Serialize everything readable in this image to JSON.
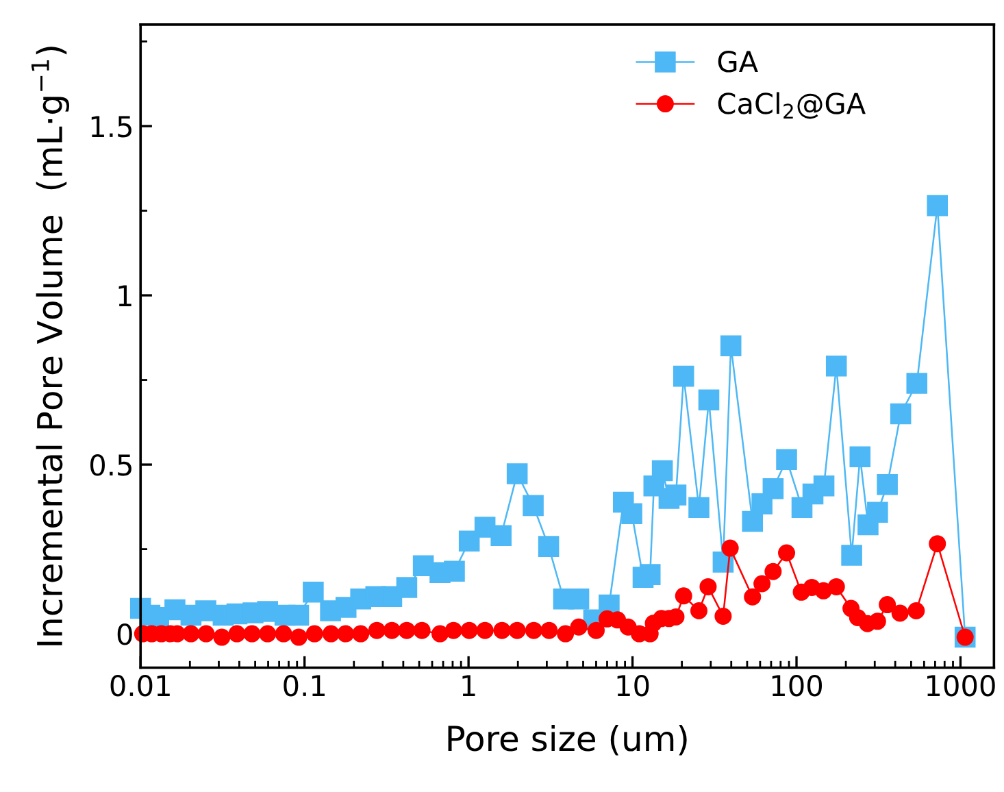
{
  "chart_data": {
    "type": "line",
    "xlabel": "Pore size (um)",
    "ylabel": "Incremental Pore Volume  (mL·g$^{−1}$)",
    "log": "x",
    "xlim": [
      0.01,
      1600
    ],
    "xticks": [
      0.01,
      0.1,
      1,
      10,
      100,
      1000
    ],
    "ylim": [
      -0.1,
      1.8
    ],
    "yticks": [
      0,
      0.5,
      1,
      1.5
    ],
    "grid": false,
    "legend": "top right",
    "line_style": "solid",
    "series": [
      {
        "name": "GA",
        "color": "#4db8f5",
        "marker": "square",
        "x": [
          0.01,
          0.0114,
          0.0129,
          0.0162,
          0.0203,
          0.025,
          0.0319,
          0.0387,
          0.0485,
          0.0595,
          0.076,
          0.092,
          0.113,
          0.144,
          0.179,
          0.22,
          0.272,
          0.34,
          0.42,
          0.53,
          0.67,
          0.82,
          1.01,
          1.26,
          1.58,
          1.98,
          2.48,
          3.08,
          3.8,
          4.7,
          5.8,
          7.2,
          8.8,
          9.9,
          11.6,
          12.8,
          13.5,
          15.2,
          16.7,
          18.4,
          20.5,
          25.4,
          29.2,
          35.7,
          39.8,
          53.9,
          61.6,
          72,
          87,
          108,
          126,
          147,
          175,
          217,
          244,
          273,
          312,
          358,
          432,
          542,
          723,
          1067
        ],
        "values": [
          0.075,
          0.055,
          0.048,
          0.071,
          0.055,
          0.068,
          0.055,
          0.059,
          0.062,
          0.066,
          0.055,
          0.055,
          0.123,
          0.068,
          0.078,
          0.103,
          0.11,
          0.11,
          0.137,
          0.201,
          0.181,
          0.185,
          0.274,
          0.315,
          0.29,
          0.473,
          0.379,
          0.258,
          0.103,
          0.103,
          0.041,
          0.085,
          0.389,
          0.355,
          0.167,
          0.175,
          0.437,
          0.482,
          0.4,
          0.41,
          0.761,
          0.373,
          0.691,
          0.212,
          0.851,
          0.332,
          0.384,
          0.429,
          0.515,
          0.373,
          0.413,
          0.437,
          0.791,
          0.232,
          0.523,
          0.322,
          0.359,
          0.441,
          0.65,
          0.74,
          1.265,
          -0.01
        ]
      },
      {
        "name": "CaCl$_{2}$@GA",
        "color": "#ff0000",
        "marker": "circle",
        "x": [
          0.0103,
          0.0117,
          0.0134,
          0.0152,
          0.0167,
          0.0203,
          0.0251,
          0.0313,
          0.0387,
          0.0478,
          0.0595,
          0.0745,
          0.0922,
          0.115,
          0.145,
          0.178,
          0.22,
          0.276,
          0.341,
          0.42,
          0.52,
          0.67,
          0.81,
          1.01,
          1.26,
          1.6,
          1.98,
          2.5,
          3.1,
          3.9,
          4.7,
          6.0,
          7.0,
          8.1,
          9.4,
          11.0,
          12.8,
          13.4,
          15.0,
          16.7,
          18.4,
          20.5,
          25.4,
          28.9,
          35.7,
          39.4,
          53.9,
          61.6,
          72,
          87,
          107,
          124,
          146,
          175,
          215,
          236,
          271,
          312,
          358,
          428,
          537,
          723,
          1067
        ],
        "values": [
          0.0,
          0.0,
          0.0,
          0.0,
          0.0,
          0.0,
          0.0,
          -0.01,
          0.0,
          0.0,
          0.0,
          0.0,
          -0.01,
          0.0,
          0.0,
          0.0,
          0.0,
          0.01,
          0.01,
          0.01,
          0.01,
          0.0,
          0.01,
          0.01,
          0.01,
          0.01,
          0.01,
          0.01,
          0.01,
          0.0,
          0.02,
          0.01,
          0.044,
          0.041,
          0.02,
          0.0,
          0.0,
          0.031,
          0.045,
          0.045,
          0.05,
          0.112,
          0.068,
          0.139,
          0.052,
          0.253,
          0.109,
          0.148,
          0.184,
          0.239,
          0.123,
          0.137,
          0.127,
          0.139,
          0.075,
          0.048,
          0.03,
          0.037,
          0.086,
          0.061,
          0.068,
          0.266,
          -0.01
        ]
      }
    ]
  }
}
